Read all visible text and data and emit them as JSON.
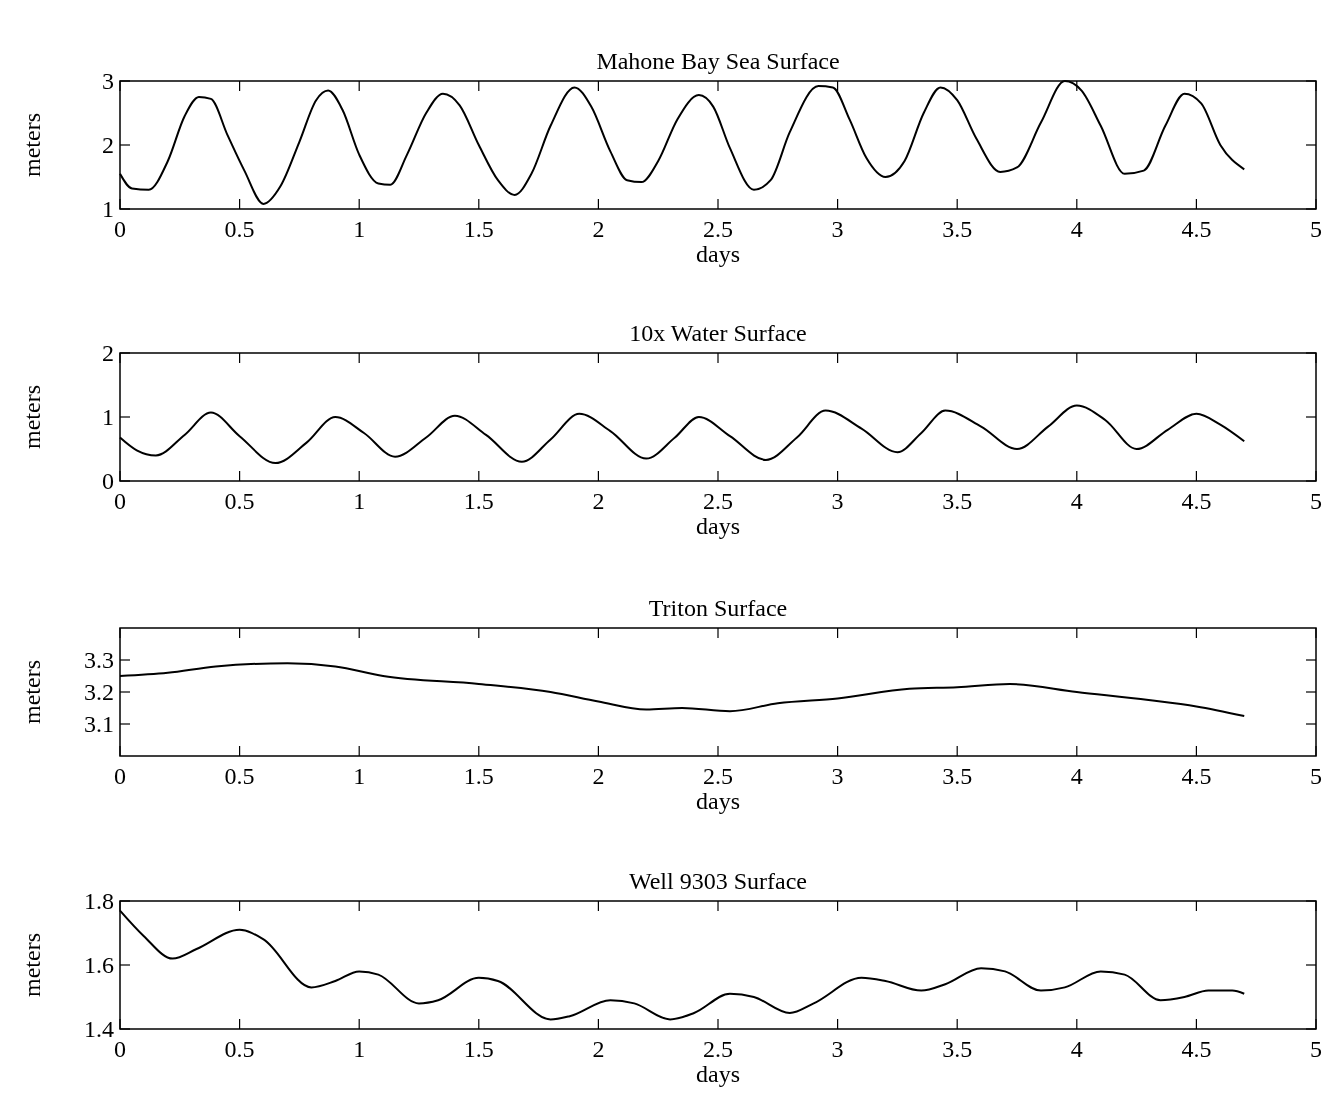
{
  "chart_data": [
    {
      "type": "line",
      "title": "Mahone Bay Sea Surface",
      "xlabel": "days",
      "ylabel": "meters",
      "xlim": [
        0,
        5
      ],
      "xticks": [
        0,
        0.5,
        1,
        1.5,
        2,
        2.5,
        3,
        3.5,
        4,
        4.5,
        5
      ],
      "ylim": [
        1,
        3
      ],
      "yticks": [
        1,
        2,
        3
      ],
      "color": "#000000",
      "x": [
        0,
        0.05,
        0.12,
        0.2,
        0.27,
        0.33,
        0.38,
        0.45,
        0.52,
        0.6,
        0.67,
        0.75,
        0.82,
        0.87,
        0.93,
        1.0,
        1.08,
        1.13,
        1.2,
        1.28,
        1.35,
        1.42,
        1.5,
        1.58,
        1.65,
        1.72,
        1.8,
        1.9,
        1.97,
        2.05,
        2.12,
        2.18,
        2.25,
        2.33,
        2.42,
        2.48,
        2.55,
        2.65,
        2.72,
        2.8,
        2.92,
        2.98,
        3.05,
        3.12,
        3.2,
        3.28,
        3.36,
        3.43,
        3.5,
        3.58,
        3.68,
        3.75,
        3.85,
        3.95,
        4.02,
        4.1,
        4.2,
        4.28,
        4.37,
        4.45,
        4.52,
        4.6,
        4.7
      ],
      "values": [
        1.55,
        1.32,
        1.3,
        1.75,
        2.45,
        2.75,
        2.72,
        2.15,
        1.6,
        1.08,
        1.35,
        2.05,
        2.7,
        2.85,
        2.55,
        1.85,
        1.4,
        1.38,
        1.85,
        2.5,
        2.8,
        2.62,
        2.0,
        1.45,
        1.22,
        1.55,
        2.3,
        2.9,
        2.6,
        1.9,
        1.45,
        1.42,
        1.75,
        2.4,
        2.78,
        2.6,
        1.95,
        1.3,
        1.45,
        2.2,
        2.92,
        2.9,
        2.4,
        1.8,
        1.5,
        1.75,
        2.5,
        2.9,
        2.7,
        2.1,
        1.58,
        1.65,
        2.35,
        3.0,
        2.85,
        2.3,
        1.55,
        1.6,
        2.3,
        2.8,
        2.65,
        2.0,
        1.62
      ]
    },
    {
      "type": "line",
      "title": "10x Water Surface",
      "xlabel": "days",
      "ylabel": "meters",
      "xlim": [
        0,
        5
      ],
      "xticks": [
        0,
        0.5,
        1,
        1.5,
        2,
        2.5,
        3,
        3.5,
        4,
        4.5,
        5
      ],
      "ylim": [
        0,
        2
      ],
      "yticks": [
        0,
        1,
        2
      ],
      "color": "#000000",
      "x": [
        0,
        0.07,
        0.15,
        0.27,
        0.38,
        0.5,
        0.65,
        0.78,
        0.9,
        1.02,
        1.15,
        1.28,
        1.4,
        1.53,
        1.68,
        1.8,
        1.92,
        2.05,
        2.2,
        2.32,
        2.42,
        2.55,
        2.7,
        2.83,
        2.95,
        3.1,
        3.25,
        3.35,
        3.45,
        3.6,
        3.75,
        3.88,
        4.0,
        4.12,
        4.25,
        4.38,
        4.5,
        4.6,
        4.7
      ],
      "values": [
        0.68,
        0.48,
        0.4,
        0.72,
        1.07,
        0.7,
        0.28,
        0.6,
        1.0,
        0.75,
        0.38,
        0.68,
        1.02,
        0.72,
        0.3,
        0.65,
        1.05,
        0.78,
        0.35,
        0.68,
        1.0,
        0.7,
        0.33,
        0.68,
        1.1,
        0.82,
        0.45,
        0.75,
        1.1,
        0.85,
        0.5,
        0.85,
        1.18,
        0.95,
        0.5,
        0.8,
        1.05,
        0.88,
        0.62
      ]
    },
    {
      "type": "line",
      "title": "Triton Surface",
      "xlabel": "days",
      "ylabel": "meters",
      "xlim": [
        0,
        5
      ],
      "xticks": [
        0,
        0.5,
        1,
        1.5,
        2,
        2.5,
        3,
        3.5,
        4,
        4.5,
        5
      ],
      "ylim": [
        3.0,
        3.4
      ],
      "yticks": [
        3.1,
        3.2,
        3.3
      ],
      "color": "#000000",
      "x": [
        0,
        0.2,
        0.4,
        0.7,
        0.9,
        1.1,
        1.5,
        1.8,
        2.0,
        2.2,
        2.35,
        2.55,
        2.75,
        3.0,
        3.3,
        3.5,
        3.72,
        4.0,
        4.3,
        4.5,
        4.7
      ],
      "values": [
        3.25,
        3.26,
        3.28,
        3.29,
        3.28,
        3.25,
        3.225,
        3.2,
        3.17,
        3.145,
        3.15,
        3.14,
        3.165,
        3.18,
        3.21,
        3.215,
        3.225,
        3.2,
        3.175,
        3.155,
        3.125
      ]
    },
    {
      "type": "line",
      "title": "Well 9303 Surface",
      "xlabel": "days",
      "ylabel": "meters",
      "xlim": [
        0,
        5
      ],
      "xticks": [
        0,
        0.5,
        1,
        1.5,
        2,
        2.5,
        3,
        3.5,
        4,
        4.5,
        5
      ],
      "ylim": [
        1.4,
        1.8
      ],
      "yticks": [
        1.4,
        1.6,
        1.8
      ],
      "color": "#000000",
      "x": [
        0,
        0.1,
        0.22,
        0.32,
        0.5,
        0.6,
        0.8,
        0.9,
        1.0,
        1.08,
        1.25,
        1.33,
        1.5,
        1.58,
        1.8,
        1.88,
        2.05,
        2.15,
        2.3,
        2.4,
        2.55,
        2.65,
        2.8,
        2.9,
        3.1,
        3.2,
        3.35,
        3.45,
        3.6,
        3.7,
        3.85,
        3.95,
        4.1,
        4.2,
        4.35,
        4.45,
        4.55,
        4.65,
        4.7
      ],
      "values": [
        1.77,
        1.69,
        1.62,
        1.65,
        1.71,
        1.68,
        1.53,
        1.55,
        1.58,
        1.57,
        1.48,
        1.49,
        1.56,
        1.55,
        1.43,
        1.44,
        1.49,
        1.48,
        1.43,
        1.45,
        1.51,
        1.5,
        1.45,
        1.48,
        1.56,
        1.55,
        1.52,
        1.54,
        1.59,
        1.58,
        1.52,
        1.53,
        1.58,
        1.57,
        1.49,
        1.5,
        1.52,
        1.52,
        1.51
      ]
    }
  ]
}
